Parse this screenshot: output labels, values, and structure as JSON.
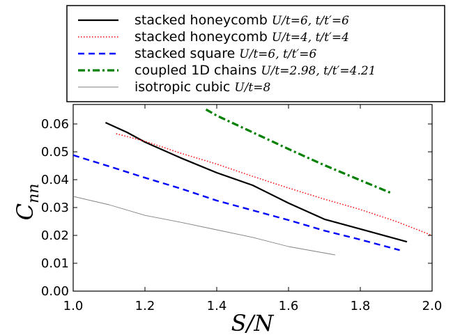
{
  "chart_data": {
    "type": "line",
    "xlabel": "S/N",
    "ylabel": "C_nn",
    "xlim": [
      1.0,
      2.0
    ],
    "ylim": [
      0.0,
      0.067
    ],
    "xticks": [
      "1.0",
      "1.2",
      "1.4",
      "1.6",
      "1.8",
      "2.0"
    ],
    "yticks": [
      "0.00",
      "0.01",
      "0.02",
      "0.03",
      "0.04",
      "0.05",
      "0.06"
    ],
    "legend_position": "above",
    "grid": false,
    "series": [
      {
        "name": "stacked honeycomb",
        "params": "U/t=6, t/t′=6",
        "color": "#000000",
        "style": "solid",
        "x": [
          1.09,
          1.15,
          1.2,
          1.3,
          1.4,
          1.5,
          1.6,
          1.7,
          1.8,
          1.93
        ],
        "y": [
          0.0605,
          0.057,
          0.0535,
          0.0478,
          0.0425,
          0.038,
          0.0316,
          0.0258,
          0.0223,
          0.0177
        ]
      },
      {
        "name": "stacked honeycomb",
        "params": "U/t=4, t/t′=4",
        "color": "#ff0000",
        "style": "dotted",
        "x": [
          1.12,
          1.2,
          1.3,
          1.4,
          1.5,
          1.6,
          1.7,
          1.8,
          1.9,
          2.0
        ],
        "y": [
          0.0565,
          0.0538,
          0.0495,
          0.0456,
          0.0412,
          0.037,
          0.033,
          0.0293,
          0.025,
          0.02
        ]
      },
      {
        "name": "stacked square",
        "params": "U/t=6, t/t′=6",
        "color": "#0000ff",
        "style": "dashed",
        "x": [
          1.0,
          1.1,
          1.2,
          1.3,
          1.4,
          1.5,
          1.6,
          1.7,
          1.8,
          1.91
        ],
        "y": [
          0.0488,
          0.0448,
          0.0407,
          0.0368,
          0.0325,
          0.029,
          0.0255,
          0.0217,
          0.0185,
          0.0147
        ]
      },
      {
        "name": "coupled 1D chains",
        "params": "U/t=2.98, t/t′=4.21",
        "color": "#008000",
        "style": "dashdot",
        "x": [
          1.37,
          1.4,
          1.5,
          1.6,
          1.7,
          1.8,
          1.89
        ],
        "y": [
          0.0652,
          0.063,
          0.057,
          0.051,
          0.0452,
          0.0398,
          0.035
        ]
      },
      {
        "name": "isotropic cubic",
        "params": "U/t=8",
        "color": "#808080",
        "style": "thin",
        "x": [
          1.0,
          1.1,
          1.2,
          1.3,
          1.4,
          1.5,
          1.6,
          1.73
        ],
        "y": [
          0.034,
          0.031,
          0.0272,
          0.0247,
          0.022,
          0.0193,
          0.016,
          0.013
        ]
      }
    ]
  }
}
